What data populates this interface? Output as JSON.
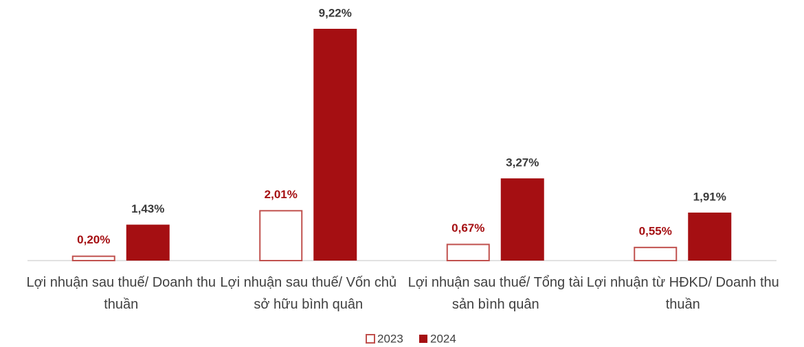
{
  "chart_data": {
    "type": "bar",
    "categories": [
      "Lợi nhuận sau thuế/ Doanh thu thuần",
      "Lợi nhuận sau thuế/ Vốn chủ sở hữu bình quân",
      "Lợi nhuận sau thuế/ Tổng tài sản bình quân",
      "Lợi nhuận từ HĐKD/ Doanh thu thuần"
    ],
    "series": [
      {
        "name": "2023",
        "color": "#c0504d",
        "fill": "none",
        "label_color": "#a50f12",
        "values": [
          0.2,
          2.01,
          0.67,
          0.55
        ],
        "value_labels": [
          "0,20%",
          "2,01%",
          "0,67%",
          "0,55%"
        ]
      },
      {
        "name": "2024",
        "color": "#a50f12",
        "fill": "#a50f12",
        "label_color": "#3a3a3a",
        "values": [
          1.43,
          9.22,
          3.27,
          1.91
        ],
        "value_labels": [
          "1,43%",
          "9,22%",
          "3,27%",
          "1,91%"
        ]
      }
    ]
  }
}
